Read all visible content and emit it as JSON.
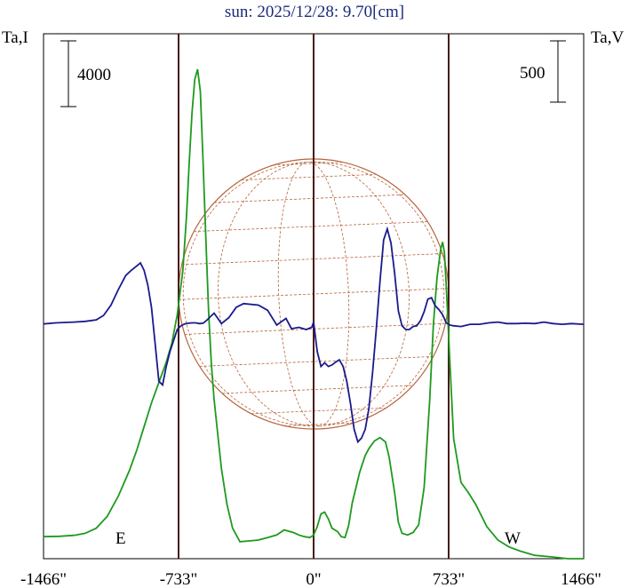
{
  "chart_data": {
    "type": "line",
    "title": "sun: 2025/12/28: 9.70[cm]",
    "left_axis_label": "Ta,I",
    "right_axis_label": "Ta,V",
    "left_scale_bar": "4000",
    "right_scale_bar": "500",
    "x_tick_labels": [
      "-1466\"",
      "-733\"",
      "0\"",
      "733\"",
      "1466\""
    ],
    "x_ticks": [
      -1466,
      -733,
      0,
      733,
      1466
    ],
    "xlim": [
      -1466,
      1466
    ],
    "limb_markers": [
      {
        "label": "E",
        "x": -733
      },
      {
        "label": "W",
        "x": 733
      }
    ],
    "vertical_lines_x": [
      -733,
      0,
      733
    ],
    "disk_radius_arcsec": 733,
    "colors": {
      "stokes_I": "#1e9a1e",
      "stokes_V": "#1a1a8c",
      "disk": "#b5643a",
      "grid": "#b5643a",
      "vertical_lines": "#4a1a1a",
      "title": "#1a2a7a"
    },
    "series": [
      {
        "key": "I",
        "x": [
          -1466,
          -1380,
          -1300,
          -1240,
          -1180,
          -1120,
          -1060,
          -1000,
          -960,
          -920,
          -880,
          -840,
          -800,
          -770,
          -740,
          -710,
          -690,
          -675,
          -660,
          -645,
          -630,
          -615,
          -600,
          -585,
          -570,
          -555,
          -540,
          -520,
          -500,
          -470,
          -440,
          -400,
          -350,
          -300,
          -250,
          -200,
          -160,
          -110,
          -80,
          -50,
          -20,
          0,
          20,
          40,
          60,
          80,
          100,
          130,
          150,
          170,
          190,
          210,
          230,
          250,
          280,
          300,
          330,
          360,
          390,
          410,
          440,
          460,
          480,
          510,
          540,
          570,
          600,
          630,
          650,
          670,
          690,
          700,
          710,
          720,
          740,
          760,
          800,
          840,
          880,
          940,
          1000,
          1060,
          1120,
          1200,
          1300,
          1380,
          1466
        ],
        "y": [
          300,
          320,
          380,
          500,
          800,
          1500,
          2700,
          4200,
          5400,
          6800,
          8200,
          9400,
          10600,
          11700,
          13400,
          16000,
          19200,
          22400,
          25300,
          27300,
          27900,
          26600,
          22400,
          17900,
          13600,
          10500,
          8400,
          6300,
          4300,
          2200,
          800,
          0,
          50,
          100,
          250,
          400,
          700,
          550,
          400,
          300,
          250,
          400,
          900,
          1650,
          1750,
          1350,
          800,
          600,
          300,
          250,
          950,
          2300,
          3200,
          4100,
          5100,
          5500,
          5950,
          6150,
          5900,
          5000,
          2900,
          1150,
          500,
          400,
          550,
          1000,
          3200,
          8300,
          12800,
          15600,
          17300,
          17700,
          17100,
          15100,
          10500,
          6100,
          3500,
          2900,
          2200,
          900,
          100,
          -300,
          -550,
          -800,
          -900,
          -1000,
          -1000
        ]
      },
      {
        "key": "V",
        "x": [
          -1466,
          -1400,
          -1300,
          -1240,
          -1180,
          -1140,
          -1100,
          -1060,
          -1020,
          -990,
          -960,
          -940,
          -920,
          -900,
          -880,
          -860,
          -840,
          -820,
          -800,
          -780,
          -760,
          -740,
          -720,
          -700,
          -680,
          -660,
          -640,
          -620,
          -600,
          -580,
          -560,
          -540,
          -520,
          -500,
          -460,
          -420,
          -380,
          -300,
          -250,
          -200,
          -150,
          -120,
          -80,
          -40,
          -10,
          0,
          20,
          40,
          60,
          80,
          100,
          120,
          140,
          160,
          180,
          200,
          220,
          240,
          260,
          280,
          300,
          320,
          340,
          360,
          380,
          400,
          420,
          440,
          460,
          480,
          500,
          520,
          540,
          560,
          580,
          600,
          620,
          640,
          660,
          680,
          700,
          720,
          740,
          760,
          800,
          850,
          900,
          950,
          1000,
          1050,
          1100,
          1150,
          1200,
          1250,
          1300,
          1350,
          1400,
          1466
        ],
        "y": [
          -25,
          -10,
          0,
          10,
          30,
          90,
          230,
          440,
          630,
          700,
          760,
          800,
          700,
          500,
          200,
          -300,
          -800,
          -850,
          -600,
          -400,
          -250,
          -100,
          -50,
          -25,
          -15,
          -10,
          -10,
          -20,
          -15,
          25,
          75,
          120,
          50,
          -20,
          60,
          200,
          250,
          230,
          160,
          -40,
          50,
          -90,
          -70,
          -100,
          -70,
          0,
          -400,
          -600,
          -550,
          -600,
          -580,
          -540,
          -510,
          -600,
          -800,
          -1100,
          -1450,
          -1620,
          -1570,
          -1450,
          -1170,
          -680,
          -100,
          550,
          1110,
          1260,
          1070,
          660,
          150,
          -50,
          -100,
          -100,
          -60,
          -50,
          20,
          140,
          310,
          330,
          220,
          170,
          100,
          -10,
          -40,
          -50,
          -60,
          -30,
          -30,
          -10,
          0,
          -20,
          -20,
          -15,
          -20,
          0,
          -20,
          -30,
          -20,
          -30
        ]
      }
    ],
    "left_scale": {
      "min": -1000,
      "max": 30000
    },
    "right_scale": {
      "min": -3200,
      "max": 3900
    }
  }
}
